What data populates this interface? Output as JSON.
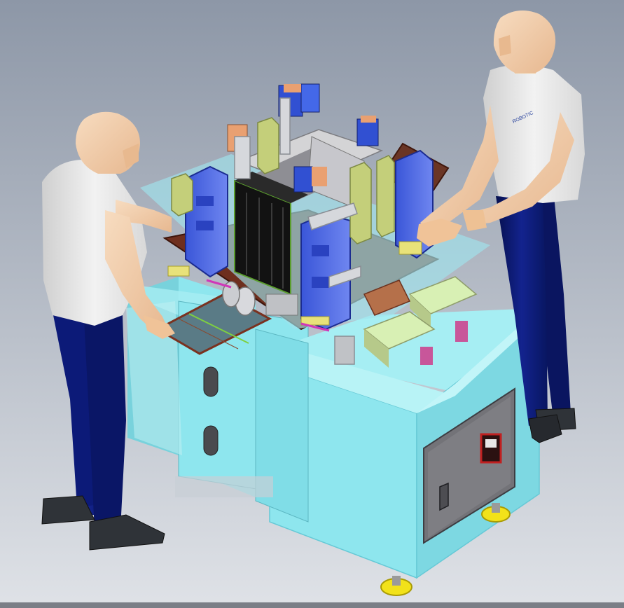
{
  "scene": {
    "title": "",
    "background_top": "#8d97a7",
    "background_bottom": "#dfe2e7"
  },
  "machine": {
    "cabinet_color": "#8ee6ee",
    "cabinet_shade": "#66c9d6",
    "panel_color": "#6f6f73",
    "foot_color": "#f2e21a"
  },
  "figures": {
    "shirt_color": "#ececec",
    "pants_color": "#0c1a78",
    "skin_color": "#f4cfa6",
    "shoe_color": "#2f3338"
  },
  "labels": {
    "shirt_logo": "ROBOTIC"
  }
}
